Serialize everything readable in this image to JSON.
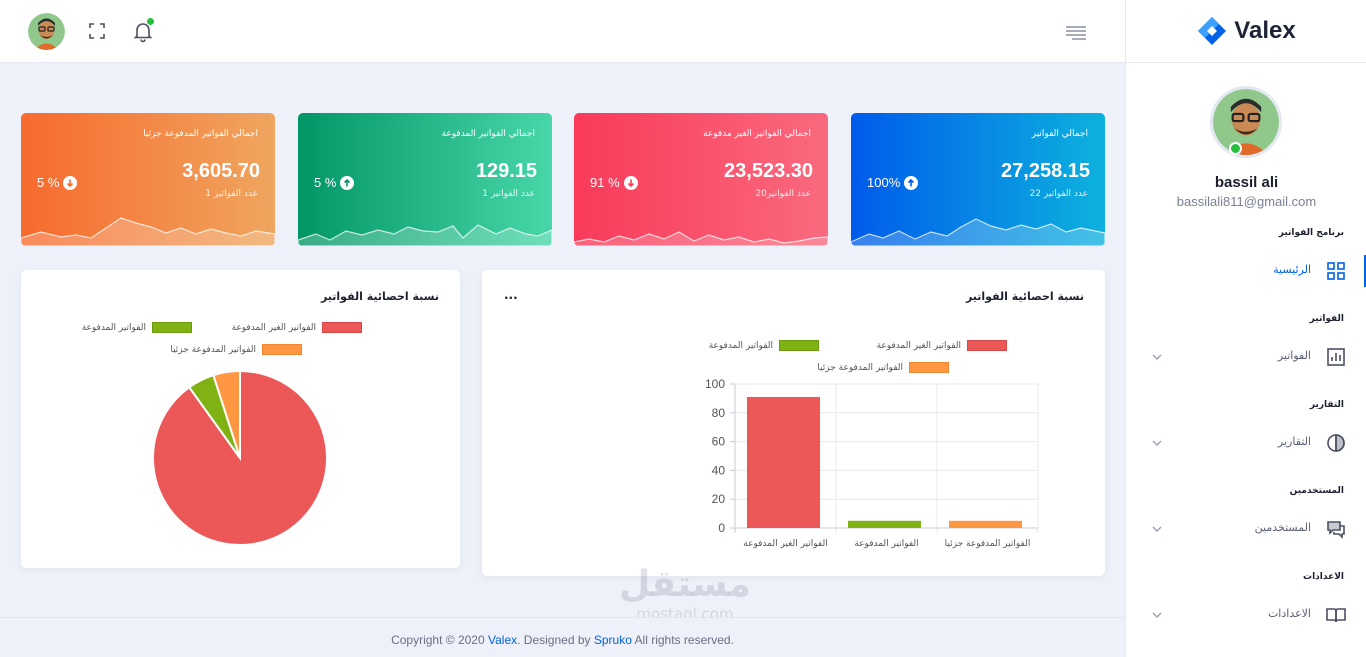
{
  "brand": {
    "name": "Valex",
    "color": "#0162e8"
  },
  "header": {
    "icons": [
      "avatar",
      "fullscreen-icon",
      "bell-icon",
      "menu-icon"
    ]
  },
  "profile": {
    "name": "bassil ali",
    "email": "bassilali811@gmail.com"
  },
  "sidebar": {
    "sections": [
      {
        "category": "برنامج الفواتير",
        "label": "الرئيسية",
        "icon": "dashboard-icon",
        "active": true
      },
      {
        "category": "الفواتير",
        "label": "الفواتير",
        "icon": "bar-chart-icon",
        "active": false
      },
      {
        "category": "التقارير",
        "label": "التقارير",
        "icon": "pie-icon",
        "active": false
      },
      {
        "category": "المستخدمين",
        "label": "المستخدمين",
        "icon": "chat-icon",
        "active": false
      },
      {
        "category": "الاعدادات",
        "label": "الاعدادات",
        "icon": "book-icon",
        "active": false
      }
    ]
  },
  "cards": [
    {
      "title": "اجمالي الفواتير المدفوعة جزئيا",
      "value": "3,605.70",
      "sub": "عدد الفواتير 1",
      "pct": "5 %",
      "direction": "down",
      "color": "#f76a2d"
    },
    {
      "title": "اجمالي الفواتير المدفوعة",
      "value": "129.15",
      "sub": "عدد الفواتير 1",
      "pct": "5 %",
      "direction": "up",
      "color": "#029666"
    },
    {
      "title": "اجمالي الفواتير الغير مدفوعة",
      "value": "23,523.30",
      "sub": "عدد الفواتير20",
      "pct": "91 %",
      "direction": "down",
      "color": "#f93a5a"
    },
    {
      "title": "اجمالي الفواتير",
      "value": "27,258.15",
      "sub": "عدد الفواتير 22",
      "pct": "100%",
      "direction": "up",
      "color": "#005bea"
    }
  ],
  "panels": {
    "bar_title": "نسبة احصائية الفواتير",
    "bar_more": "...",
    "pie_title": "نسبة احصائية الفواتير"
  },
  "chart_data": [
    {
      "type": "bar",
      "title": "نسبة احصائية الفواتير",
      "categories": [
        "الفواتير الغير المدفوعة",
        "الفواتير المدفوعة",
        "الفواتير المدفوعة جزئيا"
      ],
      "legend": [
        "الفواتير الغير المدفوعة",
        "الفواتير المدفوعة",
        "الفواتير المدفوعة جزئيا"
      ],
      "values": [
        91,
        5,
        5
      ],
      "colors": [
        "#ec5858",
        "#81b214",
        "#ff9642"
      ],
      "ylim": [
        0,
        100
      ],
      "yticks": [
        0,
        20,
        40,
        60,
        80,
        100
      ],
      "grid": true,
      "legend_position": "top"
    },
    {
      "type": "pie",
      "title": "نسبة احصائية الفواتير",
      "categories": [
        "الفواتير الغير المدفوعة",
        "الفواتير المدفوعة",
        "الفواتير المدفوعة جزئيا"
      ],
      "values": [
        91,
        5,
        5
      ],
      "colors": [
        "#ec5858",
        "#81b214",
        "#ff9642"
      ],
      "legend_position": "top"
    }
  ],
  "footer": {
    "prefix": "Copyright © 2020 ",
    "brand": "Valex",
    "middle": ". Designed by ",
    "designer": "Spruko",
    "suffix": " All rights reserved."
  },
  "watermark": {
    "arabic": "مستقل",
    "latin": "mostaql.com"
  }
}
